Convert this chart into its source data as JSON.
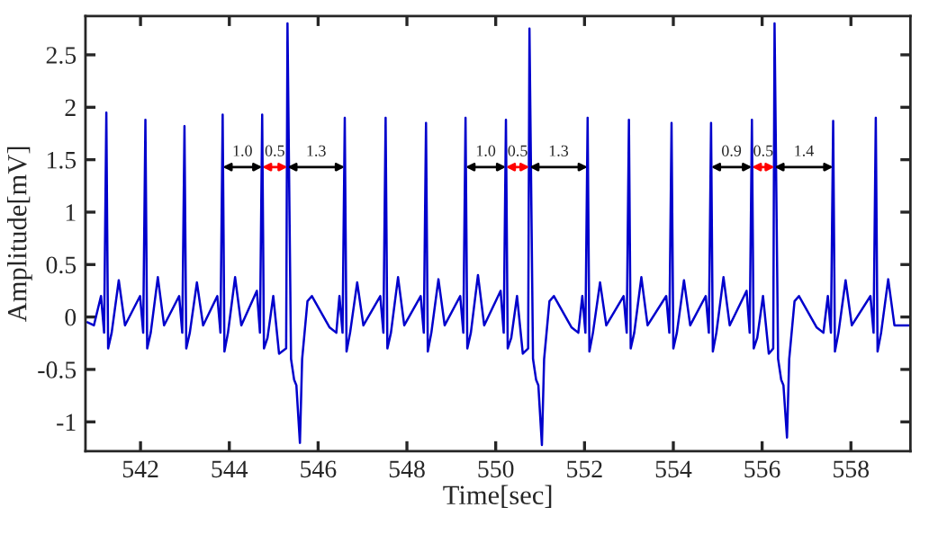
{
  "chart_data": {
    "type": "line",
    "xlabel": "Time[sec]",
    "ylabel": "Amplitude[mV]",
    "xlim": [
      540.76,
      559.34
    ],
    "ylim": [
      -1.28,
      2.87
    ],
    "xticks": [
      542,
      544,
      546,
      548,
      550,
      552,
      554,
      556,
      558
    ],
    "yticks": [
      -1,
      -0.5,
      0,
      0.5,
      1,
      1.5,
      2,
      2.5
    ],
    "grid": false,
    "legend": false,
    "marker": "none",
    "line_style": "solid",
    "series": [
      {
        "color": "#0000cc",
        "x": [
          540.8,
          540.95,
          541.11,
          541.18,
          541.23,
          541.27,
          541.35,
          541.51,
          541.65,
          541.99,
          542.06,
          542.11,
          542.15,
          542.23,
          542.39,
          542.53,
          542.87,
          542.94,
          542.99,
          543.03,
          543.11,
          543.27,
          543.41,
          543.73,
          543.8,
          543.85,
          543.89,
          543.97,
          544.13,
          544.27,
          544.62,
          544.69,
          544.74,
          544.78,
          544.86,
          544.99,
          545.12,
          545.28,
          545.31,
          545.39,
          545.46,
          545.51,
          545.59,
          545.64,
          545.76,
          545.86,
          546.06,
          546.26,
          546.41,
          546.48,
          546.55,
          546.6,
          546.64,
          546.72,
          546.88,
          547.02,
          547.4,
          547.47,
          547.52,
          547.56,
          547.64,
          547.8,
          547.94,
          548.31,
          548.38,
          548.43,
          548.47,
          548.55,
          548.71,
          548.85,
          549.2,
          549.27,
          549.32,
          549.36,
          549.44,
          549.6,
          549.74,
          550.11,
          550.18,
          550.23,
          550.27,
          550.35,
          550.48,
          550.61,
          550.73,
          550.76,
          550.84,
          550.91,
          550.96,
          551.04,
          551.09,
          551.21,
          551.31,
          551.51,
          551.71,
          551.86,
          551.95,
          552.02,
          552.07,
          552.11,
          552.19,
          552.35,
          552.49,
          552.88,
          552.95,
          553.0,
          553.04,
          553.12,
          553.28,
          553.42,
          553.84,
          553.91,
          553.96,
          554.0,
          554.08,
          554.24,
          554.38,
          554.73,
          554.8,
          554.85,
          554.89,
          554.97,
          555.13,
          555.27,
          555.65,
          555.72,
          555.77,
          555.81,
          555.89,
          556.02,
          556.15,
          556.25,
          556.28,
          556.36,
          556.43,
          556.48,
          556.56,
          556.61,
          556.73,
          556.83,
          557.03,
          557.23,
          557.38,
          557.48,
          557.55,
          557.6,
          557.64,
          557.72,
          557.88,
          558.02,
          558.44,
          558.51,
          558.56,
          558.6,
          558.68,
          558.84,
          558.98,
          559.3
        ],
        "values": [
          -0.05,
          -0.08,
          0.2,
          -0.15,
          1.95,
          -0.3,
          -0.15,
          0.35,
          -0.08,
          0.2,
          -0.15,
          1.88,
          -0.3,
          -0.15,
          0.38,
          -0.08,
          0.2,
          -0.15,
          1.82,
          -0.3,
          -0.15,
          0.33,
          -0.08,
          0.2,
          -0.15,
          1.93,
          -0.33,
          -0.15,
          0.38,
          -0.08,
          0.25,
          -0.15,
          1.93,
          -0.3,
          -0.2,
          0.2,
          -0.35,
          -0.3,
          2.8,
          -0.4,
          -0.6,
          -0.65,
          -1.2,
          -0.4,
          0.15,
          0.2,
          0.05,
          -0.1,
          -0.15,
          0.2,
          -0.15,
          1.9,
          -0.33,
          -0.15,
          0.33,
          -0.08,
          0.2,
          -0.15,
          1.9,
          -0.3,
          -0.15,
          0.38,
          -0.08,
          0.2,
          -0.15,
          1.85,
          -0.33,
          -0.15,
          0.36,
          -0.08,
          0.2,
          -0.15,
          1.9,
          -0.3,
          -0.15,
          0.4,
          -0.08,
          0.25,
          -0.15,
          1.88,
          -0.3,
          -0.2,
          0.2,
          -0.35,
          -0.3,
          2.75,
          -0.4,
          -0.6,
          -0.65,
          -1.22,
          -0.4,
          0.15,
          0.2,
          0.05,
          -0.1,
          -0.15,
          0.2,
          -0.15,
          1.9,
          -0.33,
          -0.15,
          0.33,
          -0.08,
          0.2,
          -0.15,
          1.88,
          -0.3,
          -0.15,
          0.38,
          -0.08,
          0.2,
          -0.15,
          1.85,
          -0.3,
          -0.15,
          0.35,
          -0.08,
          0.2,
          -0.15,
          1.85,
          -0.33,
          -0.15,
          0.38,
          -0.08,
          0.25,
          -0.15,
          1.88,
          -0.3,
          -0.2,
          0.2,
          -0.35,
          -0.3,
          2.8,
          -0.4,
          -0.6,
          -0.65,
          -1.15,
          -0.4,
          0.15,
          0.2,
          0.05,
          -0.1,
          -0.15,
          0.2,
          -0.15,
          1.87,
          -0.33,
          -0.15,
          0.35,
          -0.08,
          0.2,
          -0.15,
          1.9,
          -0.33,
          -0.15,
          0.36,
          -0.08,
          -0.08
        ]
      }
    ],
    "annotations": [
      {
        "text": "1.0",
        "x": 544.74,
        "y": 1.43
      },
      {
        "text": "0.5",
        "x": 545.31,
        "y": 1.43
      },
      {
        "text": "1.3",
        "x": 546.6,
        "y": 1.43
      },
      {
        "text": "1.0",
        "x": 550.23,
        "y": 1.43
      },
      {
        "text": "0.5",
        "x": 550.76,
        "y": 1.43
      },
      {
        "text": "1.3",
        "x": 552.07,
        "y": 1.43
      },
      {
        "text": "0.9",
        "x": 555.77,
        "y": 1.43
      },
      {
        "text": "0.5",
        "x": 556.28,
        "y": 1.43
      },
      {
        "text": "1.4",
        "x": 557.6,
        "y": 1.43
      }
    ]
  }
}
